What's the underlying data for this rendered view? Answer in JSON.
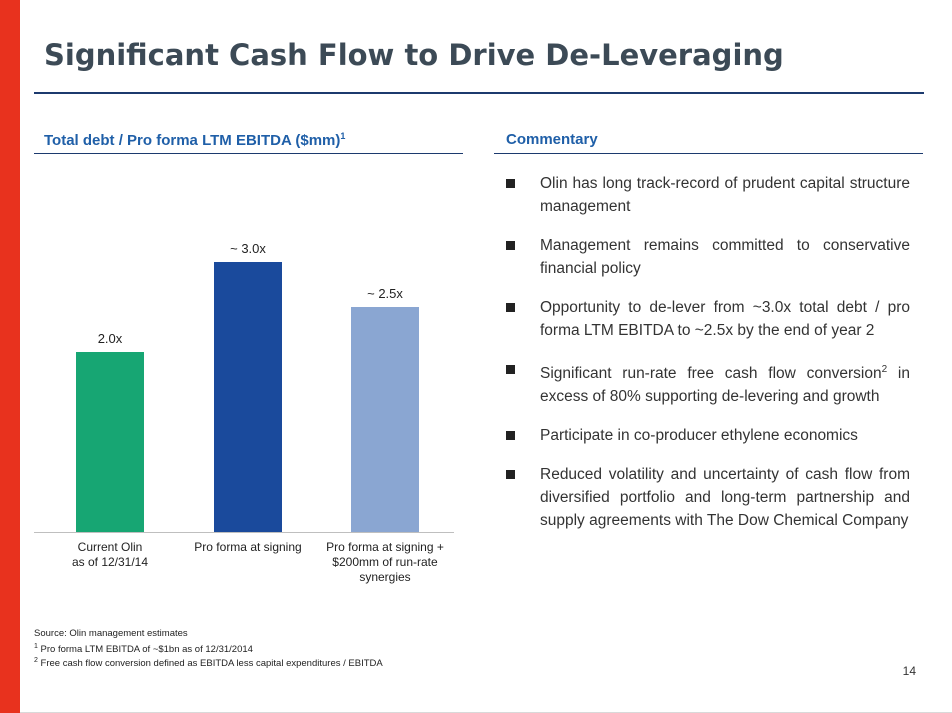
{
  "title": "Significant Cash Flow to Drive De-Leveraging",
  "left_section": {
    "heading": "Total debt / Pro forma LTM EBITDA ($mm)",
    "heading_sup": "1"
  },
  "right_section": {
    "heading": "Commentary"
  },
  "chart_data": {
    "type": "bar",
    "categories": [
      [
        "Current Olin",
        "as of 12/31/14"
      ],
      [
        "Pro forma at signing"
      ],
      [
        "Pro forma at signing +",
        "$200mm of run-rate",
        "synergies"
      ]
    ],
    "values": [
      2.0,
      3.0,
      2.5
    ],
    "data_labels": [
      "2.0x",
      "~ 3.0x",
      "~ 2.5x"
    ],
    "colors": [
      "#17a673",
      "#1a4a9c",
      "#8aa6d2"
    ],
    "ylim": [
      0,
      3.5
    ],
    "grid": false
  },
  "bullets": [
    {
      "text": "Olin has long track-record of prudent capital structure management"
    },
    {
      "text": "Management remains committed to conservative financial policy"
    },
    {
      "text": "Opportunity to de-lever from ~3.0x total debt / pro forma LTM EBITDA to ~2.5x by the end of year 2"
    },
    {
      "text": "Significant run-rate free cash flow conversion",
      "sup": "2",
      "text_after": " in excess of 80% supporting de-levering and growth"
    },
    {
      "text": "Participate in co-producer ethylene economics"
    },
    {
      "text": "Reduced volatility and uncertainty of cash flow from diversified portfolio and long-term partnership and supply agreements with The Dow Chemical Company"
    }
  ],
  "footnotes": {
    "source": "Source: Olin management estimates",
    "note1_sup": "1",
    "note1": " Pro forma LTM EBITDA of ~$1bn as of 12/31/2014",
    "note2_sup": "2",
    "note2": " Free cash flow conversion defined as EBITDA less capital expenditures / EBITDA"
  },
  "page_number": "14"
}
